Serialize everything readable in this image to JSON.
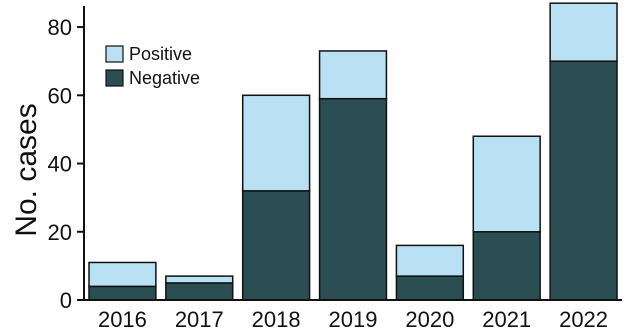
{
  "chart_data": {
    "type": "bar",
    "stacked": true,
    "categories": [
      "2016",
      "2017",
      "2018",
      "2019",
      "2020",
      "2021",
      "2022"
    ],
    "series": [
      {
        "name": "Negative",
        "color": "#2a4e52",
        "values": [
          4,
          5,
          32,
          59,
          7,
          20,
          70
        ]
      },
      {
        "name": "Positive",
        "color": "#b9e1f3",
        "values": [
          7,
          2,
          28,
          14,
          9,
          28,
          17
        ]
      }
    ],
    "ylabel": "No. cases",
    "xlabel": "",
    "ylim": [
      0,
      85
    ],
    "yticks": [
      "0",
      "20",
      "40",
      "60",
      "80"
    ],
    "ytick_values": [
      0,
      20,
      40,
      60,
      80
    ],
    "legend": {
      "placement": "top-left",
      "order": [
        "Positive",
        "Negative"
      ]
    },
    "grid": false
  }
}
